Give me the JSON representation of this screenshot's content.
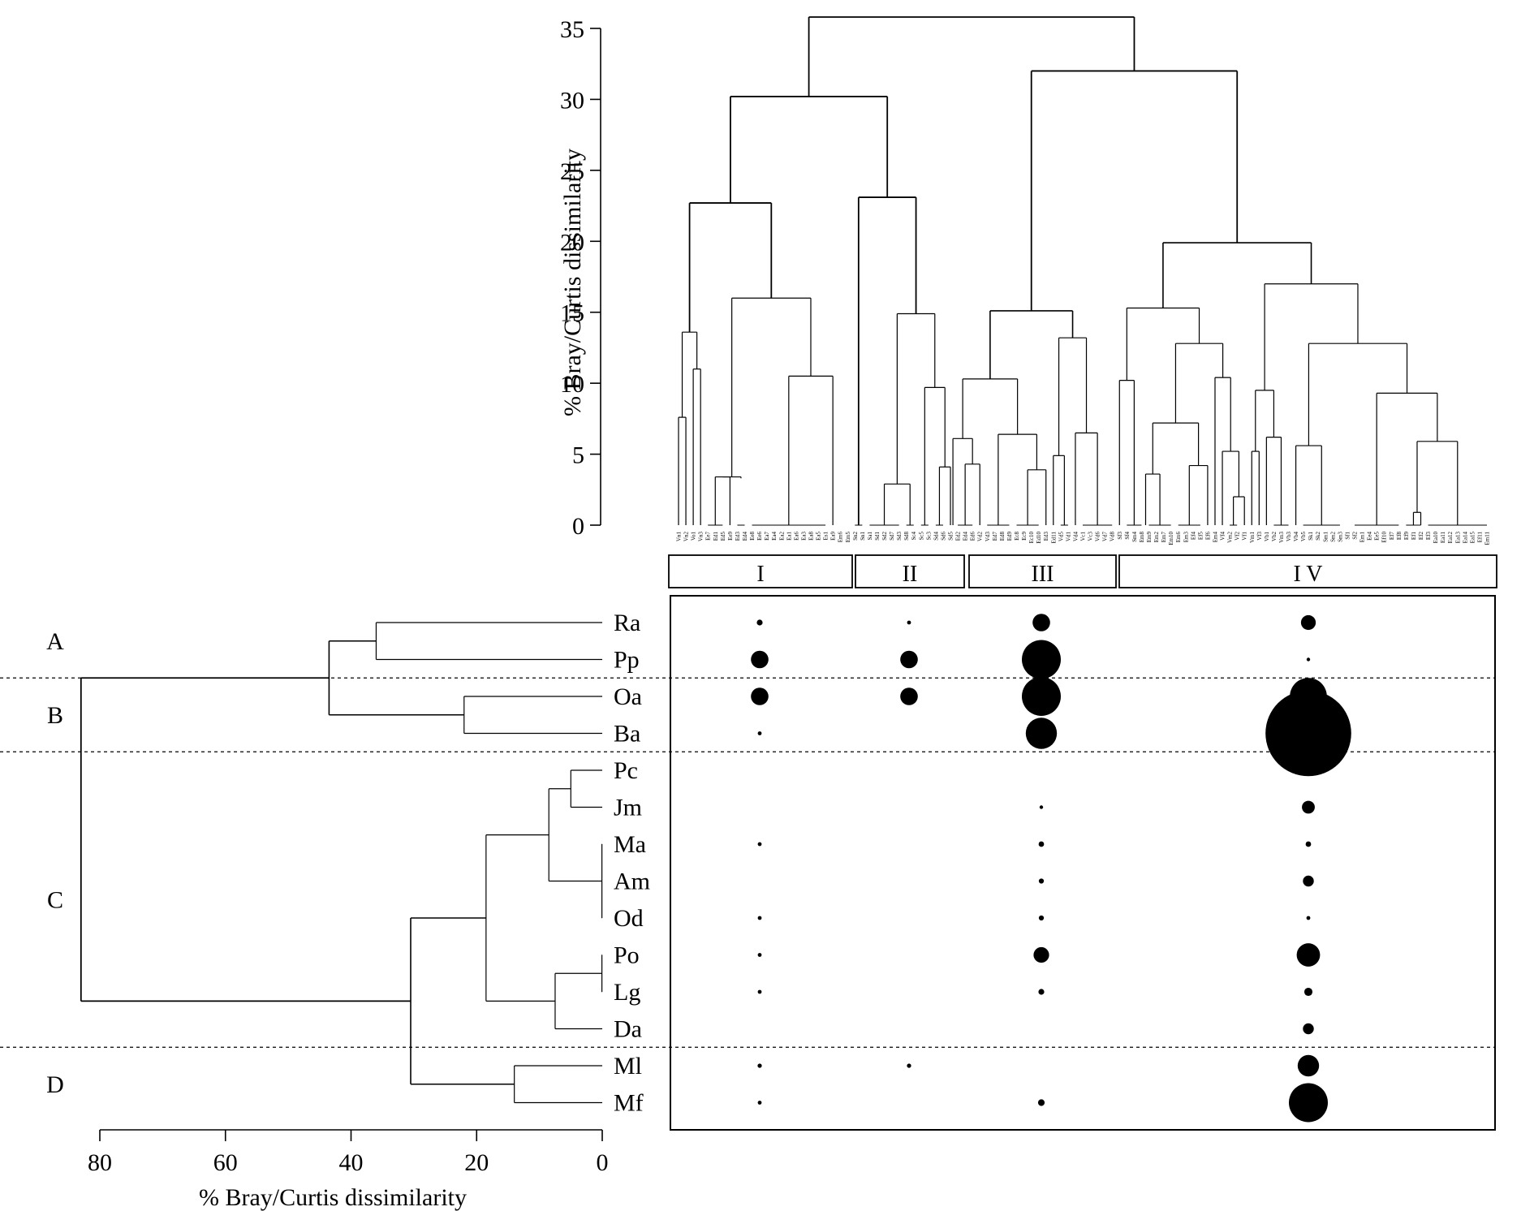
{
  "chart_data": [
    {
      "type": "dendrogram",
      "orientation": "vertical",
      "ylabel": "% Bray/Curtis dissimilarity",
      "ylim": [
        0,
        35
      ],
      "yticks": [
        "0",
        "5",
        "10",
        "15",
        "20",
        "25",
        "30",
        "35"
      ],
      "leaves": [
        "Vn1",
        "Vn2",
        "Vo1",
        "Vn3",
        "Ee7",
        "Ed1",
        "Ed5",
        "Ee9",
        "Ed3",
        "Ed4",
        "Ee8",
        "Ee6",
        "Ea7",
        "Ea4",
        "Ea2",
        "Ea1",
        "Ea6",
        "Ea3",
        "Ea8",
        "Ea5",
        "Es1",
        "Ea9",
        "Em6",
        "Em5",
        "Sn2",
        "Sn1",
        "Sa1",
        "Sd1",
        "Sd2",
        "Sd7",
        "Sd3",
        "Sd8",
        "Sc4",
        "Sc5",
        "Sc3",
        "Sd4",
        "Sd6",
        "Sd5",
        "Ed2",
        "Ed4",
        "Ed6",
        "Vd2",
        "Vd3",
        "Ed7",
        "Ed8",
        "Ed9",
        "Ec8",
        "Ec9",
        "Ec10",
        "Ed10",
        "Ed3",
        "Ed11",
        "Vd5",
        "Vd1",
        "Vd4",
        "Vc1",
        "Vc3",
        "Vd6",
        "Vd7",
        "Vd8",
        "Sf3",
        "Sf4",
        "Sm4",
        "Em8",
        "Em9",
        "Em2",
        "Em7",
        "Em10",
        "Em6",
        "Em3",
        "Ef4",
        "Ef5",
        "Ef6",
        "Em4",
        "Vf4",
        "Vm2",
        "Vf2",
        "Vf1",
        "Vm1",
        "Vf3",
        "Vb1",
        "Vb2",
        "Vm3",
        "Vb3",
        "Vb4",
        "Vb5",
        "Sk1",
        "Sk2",
        "Sm1",
        "Sm2",
        "Sm3",
        "Sf1",
        "Sf2",
        "Em1",
        "Ee4",
        "Ee5",
        "Ef10",
        "Ef7",
        "Ef8",
        "Ef9",
        "Ef1",
        "Ef2",
        "Ef3",
        "Ea10",
        "Ea11",
        "Ea12",
        "Ea13",
        "Ea14",
        "Ea15",
        "Ef11",
        "Em11"
      ],
      "groups": [
        "I",
        "II",
        "III",
        "I V"
      ],
      "main_merges": [
        {
          "height": 35.8,
          "label": "root"
        },
        {
          "height": 32.0,
          "label": "III + IV"
        },
        {
          "height": 30.2,
          "label": "I + II"
        },
        {
          "height": 23.1,
          "label": "II"
        },
        {
          "height": 22.7,
          "label": "I"
        },
        {
          "height": 19.9,
          "label": "IV"
        },
        {
          "height": 15.1,
          "label": "III"
        }
      ]
    },
    {
      "type": "dendrogram",
      "orientation": "horizontal",
      "xlabel": "% Bray/Curtis dissimilarity",
      "xlim": [
        80,
        0
      ],
      "xticks": [
        "80",
        "60",
        "40",
        "20",
        "0"
      ],
      "species": [
        "Ra",
        "Pp",
        "Oa",
        "Ba",
        "Pc",
        "Jm",
        "Ma",
        "Am",
        "Od",
        "Po",
        "Lg",
        "Da",
        "Ml",
        "Mf"
      ],
      "species_groups": [
        "A",
        "B",
        "C",
        "D"
      ],
      "merges": [
        {
          "members": [
            "Ma",
            "Am",
            "Od"
          ],
          "height": 0.0
        },
        {
          "members": [
            "Po",
            "Lg"
          ],
          "height": 0.0
        },
        {
          "members": [
            "Pc",
            "Jm"
          ],
          "height": 5.0
        },
        {
          "members": [
            "Po",
            "Lg",
            "Da"
          ],
          "height": 7.5
        },
        {
          "members": [
            "Pc",
            "Jm",
            "Ma",
            "Am",
            "Od"
          ],
          "height": 8.5
        },
        {
          "members": [
            "Ml",
            "Mf"
          ],
          "height": 14.0
        },
        {
          "members": [
            "Pc",
            "Jm",
            "Ma",
            "Am",
            "Od",
            "Po",
            "Lg",
            "Da"
          ],
          "height": 18.5
        },
        {
          "members": [
            "Oa",
            "Ba"
          ],
          "height": 22.0
        },
        {
          "members": [
            "C",
            "D"
          ],
          "height": 30.5
        },
        {
          "members": [
            "Ra",
            "Pp"
          ],
          "height": 36.0
        },
        {
          "members": [
            "A",
            "B"
          ],
          "height": 43.5
        },
        {
          "members": [
            "A",
            "B",
            "C",
            "D"
          ],
          "height": 83.0
        }
      ]
    },
    {
      "type": "bubble",
      "x": [
        "I",
        "II",
        "III",
        "I V"
      ],
      "y": [
        "Ra",
        "Pp",
        "Oa",
        "Ba",
        "Pc",
        "Jm",
        "Ma",
        "Am",
        "Od",
        "Po",
        "Lg",
        "Da",
        "Ml",
        "Mf"
      ],
      "note_size_scale": "relative abundance (circle radius)",
      "values": [
        [
          0.15,
          0.1,
          0.45,
          0.38
        ],
        [
          0.45,
          0.45,
          1.0,
          0.07
        ],
        [
          0.45,
          0.45,
          1.0,
          0.95
        ],
        [
          0.1,
          0.0,
          0.8,
          2.2
        ],
        [
          0.0,
          0.0,
          0.0,
          0.1
        ],
        [
          0.0,
          0.0,
          0.06,
          0.33
        ],
        [
          0.1,
          0.0,
          0.14,
          0.14
        ],
        [
          0.0,
          0.0,
          0.13,
          0.28
        ],
        [
          0.1,
          0.0,
          0.13,
          0.1
        ],
        [
          0.1,
          0.0,
          0.4,
          0.6
        ],
        [
          0.1,
          0.0,
          0.15,
          0.21
        ],
        [
          0.0,
          0.0,
          0.0,
          0.28
        ],
        [
          0.11,
          0.11,
          0.0,
          0.55
        ],
        [
          0.1,
          0.0,
          0.17,
          1.0
        ]
      ]
    }
  ]
}
